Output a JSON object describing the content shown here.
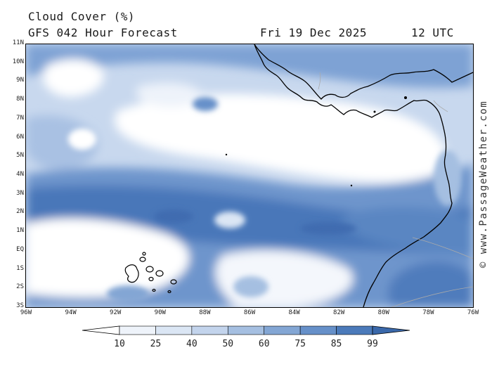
{
  "header": {
    "title": "Cloud Cover (%)",
    "forecast": "GFS 042 Hour Forecast",
    "date": "Fri 19 Dec 2025",
    "time": "12 UTC"
  },
  "credit": "© www.PassageWeather.com",
  "map": {
    "lat_labels": [
      "11N",
      "10N",
      "9N",
      "8N",
      "7N",
      "6N",
      "5N",
      "4N",
      "3N",
      "2N",
      "1N",
      "EQ",
      "1S",
      "2S",
      "3S"
    ],
    "lon_labels": [
      "96W",
      "94W",
      "92W",
      "90W",
      "88W",
      "86W",
      "84W",
      "82W",
      "80W",
      "78W",
      "76W"
    ],
    "lat_range": [
      -3,
      11
    ],
    "lon_range": [
      -96,
      -76
    ],
    "coast_color": "#000000",
    "border_color": "#aaaaaa"
  },
  "colorbar": {
    "labels": [
      "10",
      "25",
      "40",
      "50",
      "60",
      "75",
      "85",
      "99"
    ],
    "colors": [
      "#ffffff",
      "#eef3fa",
      "#dbe6f4",
      "#c3d4ec",
      "#a5bfe1",
      "#83a6d4",
      "#6690c9",
      "#4b7aba",
      "#3a68aa"
    ]
  }
}
